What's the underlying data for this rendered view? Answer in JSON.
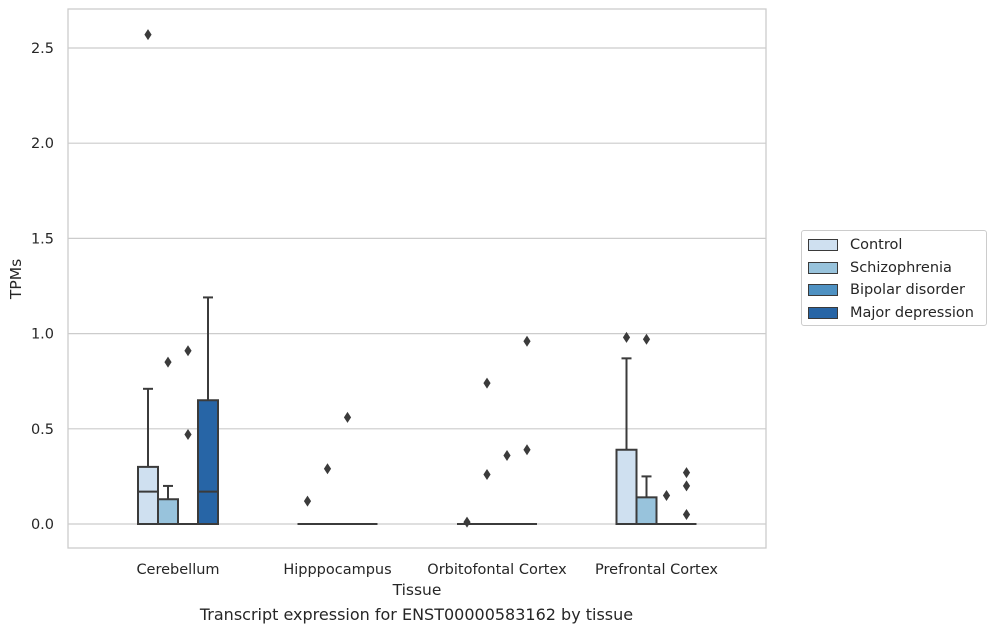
{
  "caption": "Transcript expression for ENST00000583162 by tissue",
  "chart_data": {
    "type": "box",
    "xlabel": "Tissue",
    "ylabel": "TPMs",
    "categories": [
      "Cerebellum",
      "Hipppocampus",
      "Orbitofontal Cortex",
      "Prefrontal Cortex"
    ],
    "ylim": [
      -0.12,
      2.7
    ],
    "yticks": [
      "0.0",
      "0.5",
      "1.0",
      "1.5",
      "2.0",
      "2.5"
    ],
    "grid": true,
    "legend_position": "right",
    "series": [
      {
        "name": "Control",
        "color": "#cfe0f0",
        "boxes": [
          {
            "q1": 0.0,
            "median": 0.17,
            "q3": 0.3,
            "whisker_low": 0.0,
            "whisker_high": 0.71,
            "outliers": [
              2.57
            ]
          },
          {
            "q1": 0.0,
            "median": 0.0,
            "q3": 0.0,
            "whisker_low": 0.0,
            "whisker_high": 0.0,
            "outliers": [
              0.12
            ]
          },
          {
            "q1": 0.0,
            "median": 0.0,
            "q3": 0.0,
            "whisker_low": 0.0,
            "whisker_high": 0.0,
            "outliers": [
              0.01
            ]
          },
          {
            "q1": 0.0,
            "median": 0.0,
            "q3": 0.39,
            "whisker_low": 0.0,
            "whisker_high": 0.87,
            "outliers": [
              0.98
            ]
          }
        ]
      },
      {
        "name": "Schizophrenia",
        "color": "#98c3dc",
        "boxes": [
          {
            "q1": 0.0,
            "median": 0.0,
            "q3": 0.13,
            "whisker_low": 0.0,
            "whisker_high": 0.2,
            "outliers": [
              0.85
            ]
          },
          {
            "q1": 0.0,
            "median": 0.0,
            "q3": 0.0,
            "whisker_low": 0.0,
            "whisker_high": 0.0,
            "outliers": [
              0.29
            ]
          },
          {
            "q1": 0.0,
            "median": 0.0,
            "q3": 0.0,
            "whisker_low": 0.0,
            "whisker_high": 0.0,
            "outliers": [
              0.26,
              0.74
            ]
          },
          {
            "q1": 0.0,
            "median": 0.0,
            "q3": 0.14,
            "whisker_low": 0.0,
            "whisker_high": 0.25,
            "outliers": [
              0.97
            ]
          }
        ]
      },
      {
        "name": "Bipolar disorder",
        "color": "#4e91c2",
        "boxes": [
          {
            "q1": 0.0,
            "median": 0.0,
            "q3": 0.0,
            "whisker_low": 0.0,
            "whisker_high": 0.0,
            "outliers": [
              0.47,
              0.91
            ]
          },
          {
            "q1": 0.0,
            "median": 0.0,
            "q3": 0.0,
            "whisker_low": 0.0,
            "whisker_high": 0.0,
            "outliers": [
              0.56
            ]
          },
          {
            "q1": 0.0,
            "median": 0.0,
            "q3": 0.0,
            "whisker_low": 0.0,
            "whisker_high": 0.0,
            "outliers": [
              0.36
            ]
          },
          {
            "q1": 0.0,
            "median": 0.0,
            "q3": 0.0,
            "whisker_low": 0.0,
            "whisker_high": 0.0,
            "outliers": [
              0.15
            ]
          }
        ]
      },
      {
        "name": "Major depression",
        "color": "#2765a6",
        "boxes": [
          {
            "q1": 0.0,
            "median": 0.17,
            "q3": 0.65,
            "whisker_low": 0.0,
            "whisker_high": 1.19,
            "outliers": []
          },
          {
            "q1": 0.0,
            "median": 0.0,
            "q3": 0.0,
            "whisker_low": 0.0,
            "whisker_high": 0.0,
            "outliers": []
          },
          {
            "q1": 0.0,
            "median": 0.0,
            "q3": 0.0,
            "whisker_low": 0.0,
            "whisker_high": 0.0,
            "outliers": [
              0.39,
              0.96
            ]
          },
          {
            "q1": 0.0,
            "median": 0.0,
            "q3": 0.0,
            "whisker_low": 0.0,
            "whisker_high": 0.0,
            "outliers": [
              0.05,
              0.2,
              0.27
            ]
          }
        ]
      }
    ]
  }
}
